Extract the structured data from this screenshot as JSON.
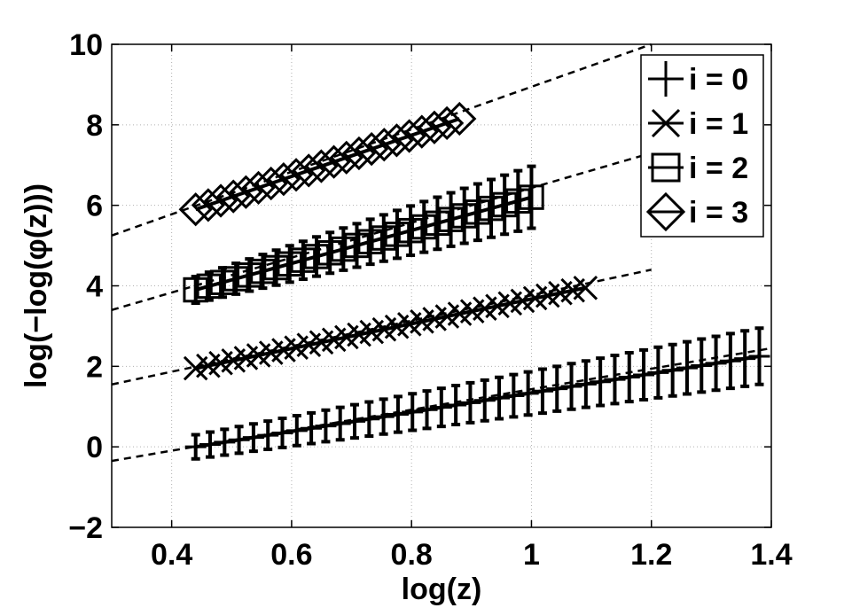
{
  "chart_data": {
    "type": "line",
    "xlabel": "log(z)",
    "ylabel": "log(−log(φ(z)))",
    "xlim": [
      0.3,
      1.4
    ],
    "ylim": [
      -2,
      10
    ],
    "xticks": [
      "0.4",
      "0.6",
      "0.8",
      "1",
      "1.2",
      "1.4"
    ],
    "xtick_values": [
      0.4,
      0.6,
      0.8,
      1.0,
      1.2,
      1.4
    ],
    "yticks": [
      "−2",
      "0",
      "2",
      "4",
      "6",
      "8",
      "10"
    ],
    "ytick_values": [
      -2,
      0,
      2,
      4,
      6,
      8,
      10
    ],
    "grid": true,
    "legend_position": "top-right",
    "series": [
      {
        "name": "i = 0",
        "marker": "plus",
        "x_start": 0.44,
        "x_end": 1.38,
        "n_points": 40,
        "y_start": 0.0,
        "y_end": 2.25,
        "fit": {
          "x": [
            0.3,
            1.4
          ],
          "y": [
            -0.35,
            2.45
          ]
        },
        "errorbar_half": 0.5
      },
      {
        "name": "i = 1",
        "marker": "x",
        "x_start": 0.44,
        "x_end": 1.09,
        "n_points": 32,
        "y_start": 1.95,
        "y_end": 3.95,
        "fit": {
          "x": [
            0.3,
            1.2
          ],
          "y": [
            1.55,
            4.4
          ]
        }
      },
      {
        "name": "i = 2",
        "marker": "square",
        "x_start": 0.44,
        "x_end": 1.0,
        "n_points": 26,
        "y_start": 3.9,
        "y_end": 6.2,
        "fit": {
          "x": [
            0.3,
            1.2
          ],
          "y": [
            3.4,
            7.3
          ]
        },
        "errorbar_half": 0.55
      },
      {
        "name": "i = 3",
        "marker": "diamond",
        "x_start": 0.44,
        "x_end": 0.88,
        "n_points": 22,
        "y_start": 5.9,
        "y_end": 8.15,
        "fit": {
          "x": [
            0.3,
            1.2
          ],
          "y": [
            5.25,
            10.0
          ]
        }
      }
    ]
  }
}
